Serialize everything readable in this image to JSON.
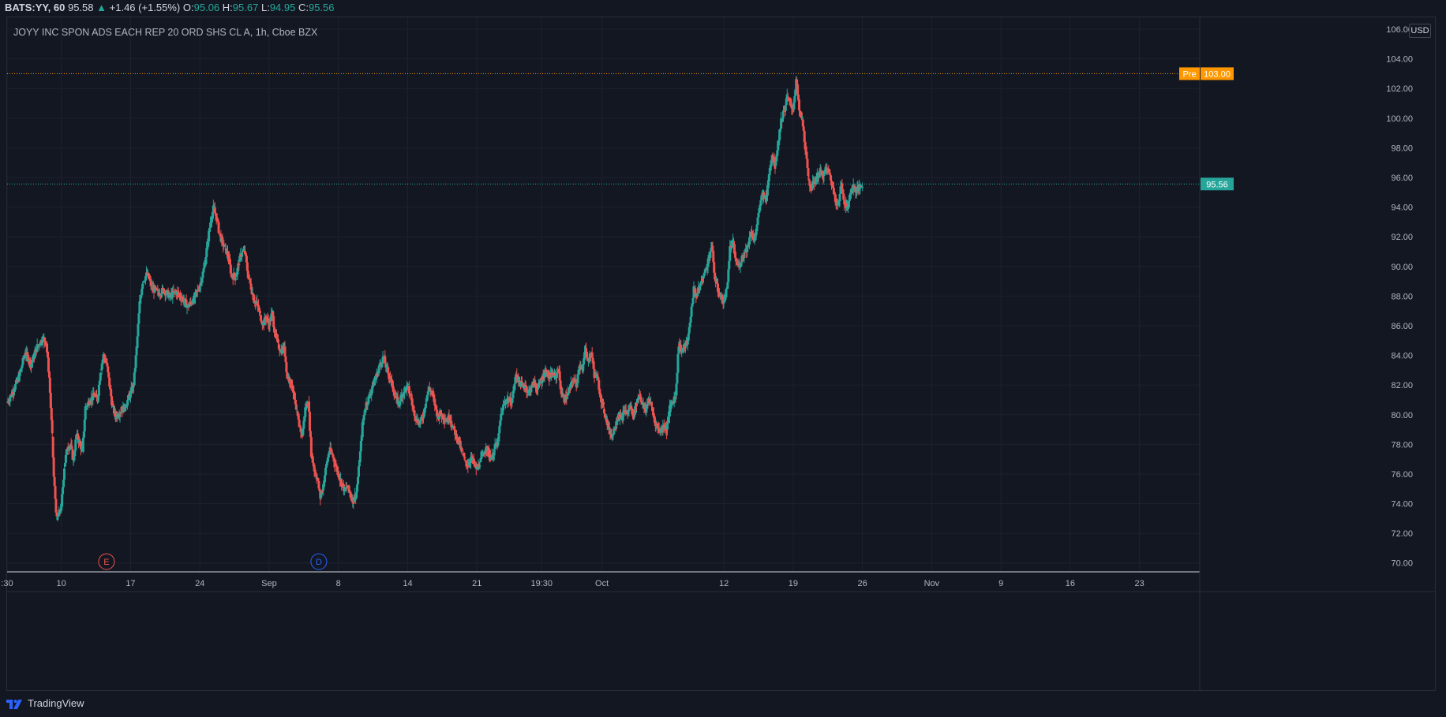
{
  "header": {
    "symbol": "BATS:YY, 60",
    "price": "95.58",
    "change_arrow": "▲",
    "change": "+1.46 (+1.55%)",
    "o_label": "O:",
    "o_value": "95.06",
    "h_label": "H:",
    "h_value": "95.67",
    "l_label": "L:",
    "l_value": "94.95",
    "c_label": "C:",
    "c_value": "95.56"
  },
  "currency": "USD",
  "footer": {
    "brand": "TradingView",
    "logo_icon": "tradingview-logo-icon"
  },
  "colors": {
    "background": "#131722",
    "up": "#26a69a",
    "down": "#ef5350",
    "pre": "#ff9800",
    "grid": "#1e222d",
    "text": "#d1d4dc"
  },
  "chart_data": {
    "type": "candlestick",
    "title": "JOYY INC SPON ADS EACH REP 20 ORD SHS CL A, 1h, Cboe BZX",
    "ylim": [
      69.4,
      106.8
    ],
    "y_ticks": [
      "106.00",
      "104.00",
      "102.00",
      "100.00",
      "98.00",
      "96.00",
      "94.00",
      "92.00",
      "90.00",
      "88.00",
      "86.00",
      "84.00",
      "82.00",
      "80.00",
      "78.00",
      "76.00",
      "74.00",
      "72.00",
      "70.00"
    ],
    "x_ticks": [
      {
        "label": ":30",
        "x": 0
      },
      {
        "label": "10",
        "x": 36
      },
      {
        "label": "17",
        "x": 82
      },
      {
        "label": "24",
        "x": 128
      },
      {
        "label": "Sep",
        "x": 174
      },
      {
        "label": "8",
        "x": 220
      },
      {
        "label": "14",
        "x": 266
      },
      {
        "label": "21",
        "x": 312
      },
      {
        "label": "19:30",
        "x": 355
      },
      {
        "label": "Oct",
        "x": 395
      },
      {
        "label": "12",
        "x": 476
      },
      {
        "label": "19",
        "x": 522
      },
      {
        "label": "26",
        "x": 568
      },
      {
        "label": "Nov",
        "x": 614
      },
      {
        "label": "9",
        "x": 660
      },
      {
        "label": "16",
        "x": 706
      },
      {
        "label": "23",
        "x": 752
      }
    ],
    "x_range": [
      0,
      792
    ],
    "price_lines": [
      {
        "label": "Pre",
        "value": 103.0,
        "text": "103.00",
        "color": "#ff9800"
      },
      {
        "label": "",
        "value": 95.56,
        "text": "95.56",
        "color": "#26a69a"
      }
    ],
    "events": [
      {
        "letter": "E",
        "x": 66,
        "color": "#ef5350"
      },
      {
        "letter": "D",
        "x": 207,
        "color": "#2962ff"
      }
    ],
    "path_points": [
      [
        0,
        80.8
      ],
      [
        4,
        81.6
      ],
      [
        8,
        82.6
      ],
      [
        12,
        84.2
      ],
      [
        16,
        83.4
      ],
      [
        20,
        84.6
      ],
      [
        24,
        85.2
      ],
      [
        26,
        84.8
      ],
      [
        28,
        82.5
      ],
      [
        30,
        78.5
      ],
      [
        31,
        75.8
      ],
      [
        33,
        72.9
      ],
      [
        36,
        73.8
      ],
      [
        38,
        76.5
      ],
      [
        40,
        77.8
      ],
      [
        42,
        78.0
      ],
      [
        44,
        76.9
      ],
      [
        46,
        78.6
      ],
      [
        48,
        78.2
      ],
      [
        50,
        77.5
      ],
      [
        52,
        80.5
      ],
      [
        55,
        81.0
      ],
      [
        58,
        81.3
      ],
      [
        60,
        81.0
      ],
      [
        62,
        83.0
      ],
      [
        64,
        84.0
      ],
      [
        66,
        83.5
      ],
      [
        68,
        82.0
      ],
      [
        70,
        80.5
      ],
      [
        72,
        79.9
      ],
      [
        75,
        80.2
      ],
      [
        78,
        80.5
      ],
      [
        81,
        81.2
      ],
      [
        84,
        82.0
      ],
      [
        86,
        84.5
      ],
      [
        88,
        87.5
      ],
      [
        90,
        89.0
      ],
      [
        93,
        89.5
      ],
      [
        96,
        88.6
      ],
      [
        100,
        88.2
      ],
      [
        104,
        88.4
      ],
      [
        108,
        88.0
      ],
      [
        112,
        88.3
      ],
      [
        116,
        87.9
      ],
      [
        120,
        87.3
      ],
      [
        124,
        87.8
      ],
      [
        128,
        88.7
      ],
      [
        131,
        90.0
      ],
      [
        133,
        91.5
      ],
      [
        135,
        93.0
      ],
      [
        137,
        93.9
      ],
      [
        139,
        93.3
      ],
      [
        141,
        92.2
      ],
      [
        143,
        91.6
      ],
      [
        145,
        91.2
      ],
      [
        147,
        90.6
      ],
      [
        149,
        89.4
      ],
      [
        152,
        89.3
      ],
      [
        154,
        90.3
      ],
      [
        156,
        91.0
      ],
      [
        158,
        90.9
      ],
      [
        160,
        89.4
      ],
      [
        162,
        88.6
      ],
      [
        164,
        87.7
      ],
      [
        166,
        87.5
      ],
      [
        168,
        86.7
      ],
      [
        170,
        86.1
      ],
      [
        172,
        86.6
      ],
      [
        174,
        86.0
      ],
      [
        176,
        86.9
      ],
      [
        178,
        85.4
      ],
      [
        180,
        84.7
      ],
      [
        182,
        84.3
      ],
      [
        184,
        84.6
      ],
      [
        186,
        82.6
      ],
      [
        188,
        82.3
      ],
      [
        190,
        81.6
      ],
      [
        192,
        80.2
      ],
      [
        194,
        79.3
      ],
      [
        196,
        78.6
      ],
      [
        198,
        80.4
      ],
      [
        200,
        80.9
      ],
      [
        202,
        77.4
      ],
      [
        204,
        76.3
      ],
      [
        206,
        75.7
      ],
      [
        208,
        74.4
      ],
      [
        210,
        75.3
      ],
      [
        212,
        76.6
      ],
      [
        214,
        77.6
      ],
      [
        216,
        77.3
      ],
      [
        218,
        76.6
      ],
      [
        220,
        76.0
      ],
      [
        222,
        75.4
      ],
      [
        224,
        74.9
      ],
      [
        226,
        75.1
      ],
      [
        228,
        74.6
      ],
      [
        230,
        74.2
      ],
      [
        232,
        74.8
      ],
      [
        234,
        76.8
      ],
      [
        236,
        79.3
      ],
      [
        238,
        80.6
      ],
      [
        240,
        81.1
      ],
      [
        242,
        81.7
      ],
      [
        244,
        82.3
      ],
      [
        246,
        82.8
      ],
      [
        248,
        83.5
      ],
      [
        250,
        83.9
      ],
      [
        252,
        83.1
      ],
      [
        254,
        82.6
      ],
      [
        256,
        81.9
      ],
      [
        258,
        81.1
      ],
      [
        260,
        80.8
      ],
      [
        262,
        81.3
      ],
      [
        264,
        81.7
      ],
      [
        266,
        81.9
      ],
      [
        268,
        81.2
      ],
      [
        270,
        80.3
      ],
      [
        272,
        79.7
      ],
      [
        274,
        79.4
      ],
      [
        276,
        79.8
      ],
      [
        278,
        80.9
      ],
      [
        280,
        81.8
      ],
      [
        282,
        81.5
      ],
      [
        284,
        80.7
      ],
      [
        286,
        79.9
      ],
      [
        288,
        80.1
      ],
      [
        290,
        79.8
      ],
      [
        292,
        79.6
      ],
      [
        294,
        79.9
      ],
      [
        296,
        79.1
      ],
      [
        298,
        78.7
      ],
      [
        300,
        78.2
      ],
      [
        302,
        77.4
      ],
      [
        304,
        76.9
      ],
      [
        306,
        76.6
      ],
      [
        308,
        77.1
      ],
      [
        310,
        76.7
      ],
      [
        312,
        76.3
      ],
      [
        314,
        76.8
      ],
      [
        316,
        77.2
      ],
      [
        318,
        77.9
      ],
      [
        320,
        77.3
      ],
      [
        322,
        77.1
      ],
      [
        324,
        77.8
      ],
      [
        326,
        78.2
      ],
      [
        328,
        80.0
      ],
      [
        330,
        80.7
      ],
      [
        332,
        81.1
      ],
      [
        335,
        80.8
      ],
      [
        338,
        82.7
      ],
      [
        340,
        82.3
      ],
      [
        342,
        81.9
      ],
      [
        344,
        82.0
      ],
      [
        346,
        81.5
      ],
      [
        348,
        81.8
      ],
      [
        350,
        82.2
      ],
      [
        352,
        81.7
      ],
      [
        354,
        82.1
      ],
      [
        356,
        82.6
      ],
      [
        358,
        83.0
      ],
      [
        360,
        82.4
      ],
      [
        362,
        82.8
      ],
      [
        364,
        82.5
      ],
      [
        366,
        83.1
      ],
      [
        368,
        81.5
      ],
      [
        370,
        81.0
      ],
      [
        372,
        81.3
      ],
      [
        374,
        81.8
      ],
      [
        376,
        82.4
      ],
      [
        378,
        82.0
      ],
      [
        380,
        83.4
      ],
      [
        382,
        82.9
      ],
      [
        384,
        84.5
      ],
      [
        386,
        83.6
      ],
      [
        388,
        84.2
      ],
      [
        390,
        82.7
      ],
      [
        392,
        82.5
      ],
      [
        394,
        81.3
      ],
      [
        396,
        80.4
      ],
      [
        398,
        79.7
      ],
      [
        400,
        78.9
      ],
      [
        402,
        78.6
      ],
      [
        404,
        79.4
      ],
      [
        406,
        80.0
      ],
      [
        408,
        79.7
      ],
      [
        410,
        80.3
      ],
      [
        412,
        80.1
      ],
      [
        414,
        80.6
      ],
      [
        416,
        79.9
      ],
      [
        418,
        80.8
      ],
      [
        420,
        81.4
      ],
      [
        422,
        80.7
      ],
      [
        424,
        80.2
      ],
      [
        426,
        81.1
      ],
      [
        428,
        80.5
      ],
      [
        430,
        79.6
      ],
      [
        432,
        79.1
      ],
      [
        434,
        78.9
      ],
      [
        436,
        79.3
      ],
      [
        438,
        79.0
      ],
      [
        440,
        80.4
      ],
      [
        442,
        80.9
      ],
      [
        444,
        81.3
      ],
      [
        446,
        84.8
      ],
      [
        448,
        84.3
      ],
      [
        450,
        84.6
      ],
      [
        452,
        85.0
      ],
      [
        456,
        88.5
      ],
      [
        458,
        88.0
      ],
      [
        460,
        88.7
      ],
      [
        462,
        89.2
      ],
      [
        464,
        89.8
      ],
      [
        466,
        90.6
      ],
      [
        468,
        91.4
      ],
      [
        470,
        89.2
      ],
      [
        472,
        88.4
      ],
      [
        474,
        87.9
      ],
      [
        476,
        87.6
      ],
      [
        478,
        88.5
      ],
      [
        480,
        91.2
      ],
      [
        482,
        91.6
      ],
      [
        484,
        90.3
      ],
      [
        486,
        90.0
      ],
      [
        488,
        90.6
      ],
      [
        490,
        91.0
      ],
      [
        492,
        91.4
      ],
      [
        494,
        92.4
      ],
      [
        496,
        91.7
      ],
      [
        498,
        92.8
      ],
      [
        500,
        94.1
      ],
      [
        502,
        95.0
      ],
      [
        504,
        94.4
      ],
      [
        506,
        96.4
      ],
      [
        508,
        97.5
      ],
      [
        510,
        96.8
      ],
      [
        512,
        98.4
      ],
      [
        514,
        99.8
      ],
      [
        516,
        100.5
      ],
      [
        518,
        101.4
      ],
      [
        520,
        101.0
      ],
      [
        522,
        100.6
      ],
      [
        524,
        102.6
      ],
      [
        526,
        100.5
      ],
      [
        528,
        99.9
      ],
      [
        530,
        98.1
      ],
      [
        532,
        95.9
      ],
      [
        534,
        95.3
      ],
      [
        536,
        95.7
      ],
      [
        538,
        96.1
      ],
      [
        540,
        96.4
      ],
      [
        542,
        96.1
      ],
      [
        544,
        96.6
      ],
      [
        546,
        96.3
      ],
      [
        548,
        95.4
      ],
      [
        550,
        94.6
      ],
      [
        552,
        94.1
      ],
      [
        554,
        95.6
      ],
      [
        556,
        94.4
      ],
      [
        558,
        93.9
      ],
      [
        560,
        95.0
      ],
      [
        562,
        95.4
      ],
      [
        564,
        95.1
      ],
      [
        566,
        95.3
      ],
      [
        568,
        95.56
      ]
    ]
  }
}
